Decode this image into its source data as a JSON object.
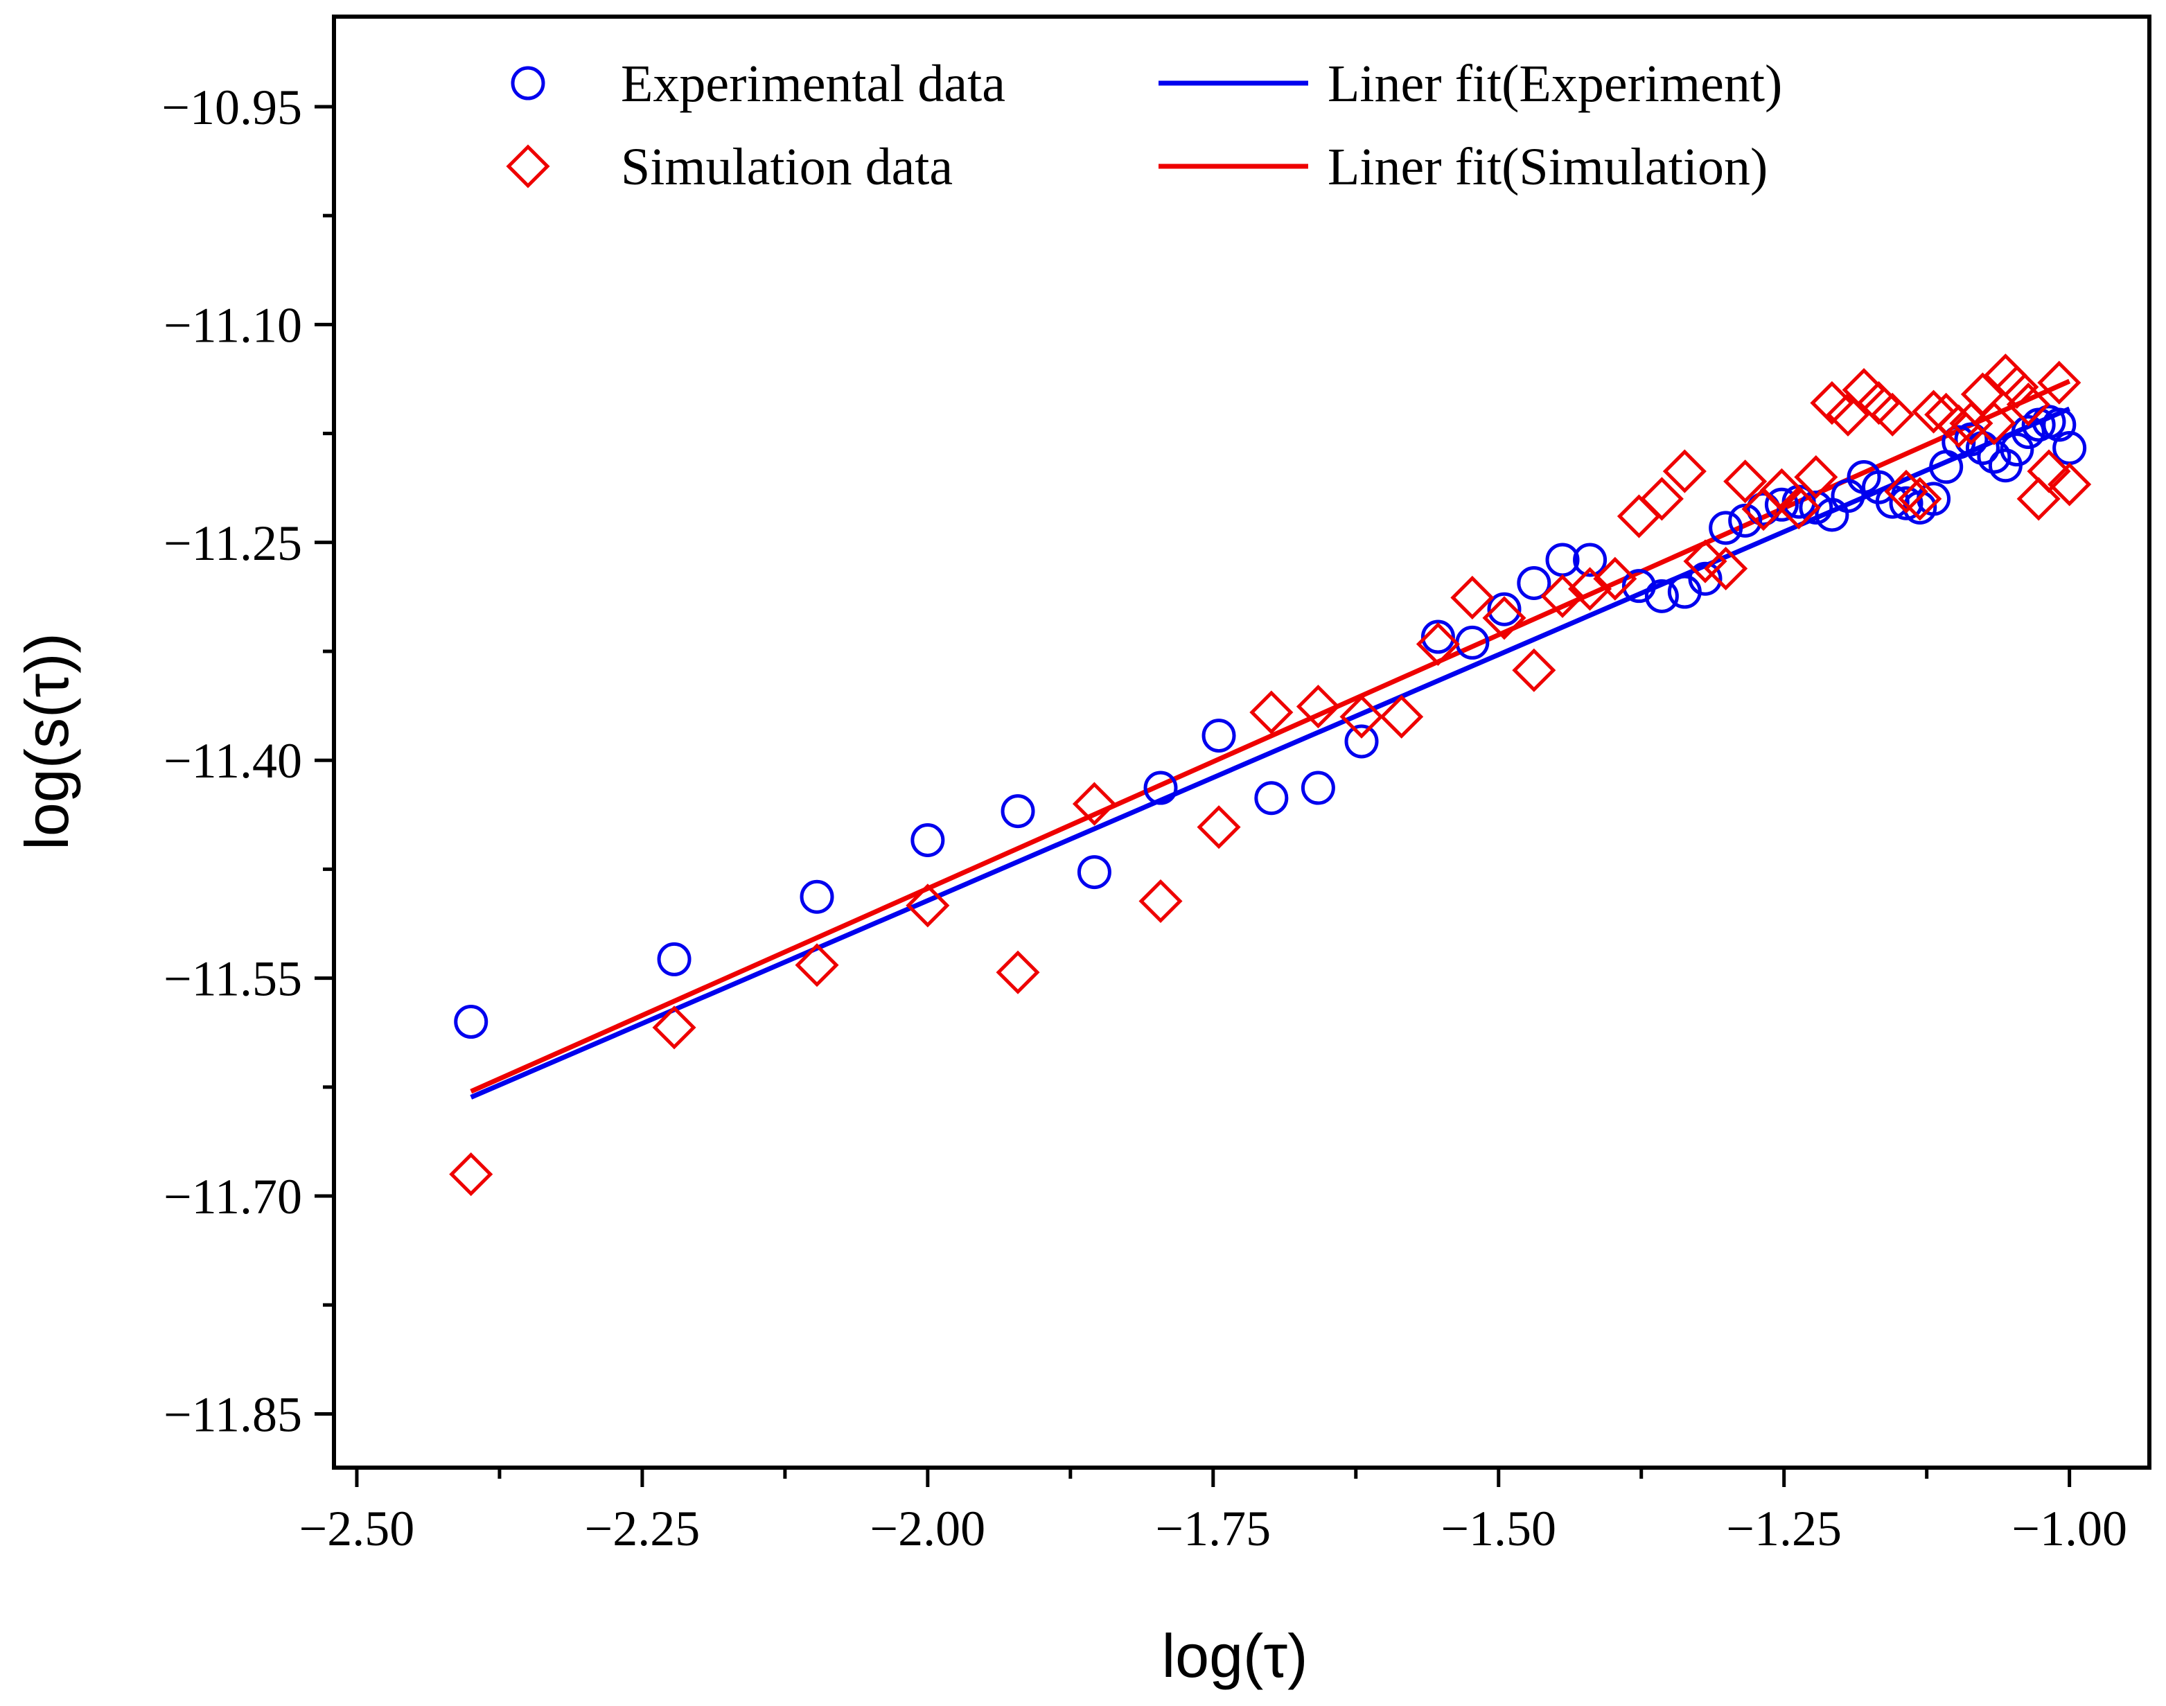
{
  "chart_data": {
    "type": "scatter",
    "xlabel": "log(τ)",
    "ylabel": "log(s(τ))",
    "xlim": [
      -2.52,
      -0.93
    ],
    "ylim": [
      -11.887,
      -10.888
    ],
    "x_ticks": [
      -2.5,
      -2.25,
      -2.0,
      -1.75,
      -1.5,
      -1.25,
      -1.0
    ],
    "x_tick_labels": [
      "−2.50",
      "−2.25",
      "−2.00",
      "−1.75",
      "−1.50",
      "−1.25",
      "−1.00"
    ],
    "y_ticks": [
      -10.95,
      -11.1,
      -11.25,
      -11.4,
      -11.55,
      -11.7,
      -11.85
    ],
    "y_tick_labels": [
      "−10.95",
      "−11.10",
      "−11.25",
      "−11.40",
      "−11.55",
      "−11.70",
      "−11.85"
    ],
    "grid": false,
    "legend_position": "top",
    "legend": [
      {
        "label": "Experimental data",
        "marker": "circle",
        "color": "#0000ee"
      },
      {
        "label": "Liner fit(Experiment)",
        "marker": "line",
        "color": "#0000ee"
      },
      {
        "label": "Simulation data",
        "marker": "diamond",
        "color": "#ee0000"
      },
      {
        "label": "Liner fit(Simulation)",
        "marker": "line",
        "color": "#ee0000"
      }
    ],
    "series": [
      {
        "name": "Experimental data",
        "type": "scatter",
        "marker": "circle",
        "color": "#0000ee",
        "x": [
          -2.4,
          -2.222,
          -2.097,
          -2.0,
          -1.921,
          -1.854,
          -1.796,
          -1.745,
          -1.699,
          -1.658,
          -1.62,
          -1.553,
          -1.523,
          -1.495,
          -1.469,
          -1.444,
          -1.42,
          -1.377,
          -1.357,
          -1.337,
          -1.319,
          -1.301,
          -1.284,
          -1.268,
          -1.252,
          -1.237,
          -1.222,
          -1.208,
          -1.194,
          -1.18,
          -1.167,
          -1.155,
          -1.143,
          -1.131,
          -1.119,
          -1.108,
          -1.097,
          -1.086,
          -1.076,
          -1.066,
          -1.056,
          -1.046,
          -1.036,
          -1.027,
          -1.018,
          -1.009,
          -1.0
        ],
        "y": [
          -11.58,
          -11.537,
          -11.494,
          -11.455,
          -11.435,
          -11.477,
          -11.419,
          -11.383,
          -11.426,
          -11.419,
          -11.387,
          -11.315,
          -11.319,
          -11.296,
          -11.278,
          -11.262,
          -11.262,
          -11.28,
          -11.287,
          -11.284,
          -11.275,
          -11.24,
          -11.235,
          -11.227,
          -11.224,
          -11.222,
          -11.226,
          -11.231,
          -11.218,
          -11.205,
          -11.212,
          -11.222,
          -11.223,
          -11.226,
          -11.22,
          -11.198,
          -11.181,
          -11.179,
          -11.185,
          -11.191,
          -11.197,
          -11.186,
          -11.174,
          -11.169,
          -11.167,
          -11.169,
          -11.185
        ]
      },
      {
        "name": "Simulation data",
        "type": "scatter",
        "marker": "diamond",
        "color": "#ee0000",
        "x": [
          -2.4,
          -2.222,
          -2.097,
          -2.0,
          -1.921,
          -1.854,
          -1.796,
          -1.745,
          -1.699,
          -1.658,
          -1.62,
          -1.585,
          -1.553,
          -1.523,
          -1.495,
          -1.469,
          -1.444,
          -1.42,
          -1.398,
          -1.377,
          -1.357,
          -1.337,
          -1.319,
          -1.301,
          -1.284,
          -1.268,
          -1.252,
          -1.237,
          -1.222,
          -1.208,
          -1.194,
          -1.18,
          -1.167,
          -1.155,
          -1.143,
          -1.131,
          -1.119,
          -1.108,
          -1.097,
          -1.086,
          -1.076,
          -1.066,
          -1.056,
          -1.046,
          -1.036,
          -1.027,
          -1.018,
          -1.009,
          -1.0
        ],
        "y": [
          -11.685,
          -11.584,
          -11.541,
          -11.5,
          -11.546,
          -11.43,
          -11.497,
          -11.446,
          -11.367,
          -11.363,
          -11.37,
          -11.37,
          -11.32,
          -11.288,
          -11.302,
          -11.338,
          -11.287,
          -11.282,
          -11.275,
          -11.232,
          -11.22,
          -11.201,
          -11.263,
          -11.268,
          -11.208,
          -11.227,
          -11.214,
          -11.226,
          -11.205,
          -11.154,
          -11.162,
          -11.145,
          -11.154,
          -11.162,
          -11.215,
          -11.22,
          -11.16,
          -11.162,
          -11.17,
          -11.168,
          -11.148,
          -11.168,
          -11.135,
          -11.143,
          -11.155,
          -11.22,
          -11.201,
          -11.14,
          -11.21
        ]
      },
      {
        "name": "Liner fit(Experiment)",
        "type": "line",
        "color": "#0000ee",
        "x": [
          -2.4,
          -1.0
        ],
        "y": [
          -11.632,
          -11.158
        ]
      },
      {
        "name": "Liner fit(Simulation)",
        "type": "line",
        "color": "#ee0000",
        "x": [
          -2.4,
          -1.0
        ],
        "y": [
          -11.628,
          -11.139
        ]
      }
    ]
  }
}
